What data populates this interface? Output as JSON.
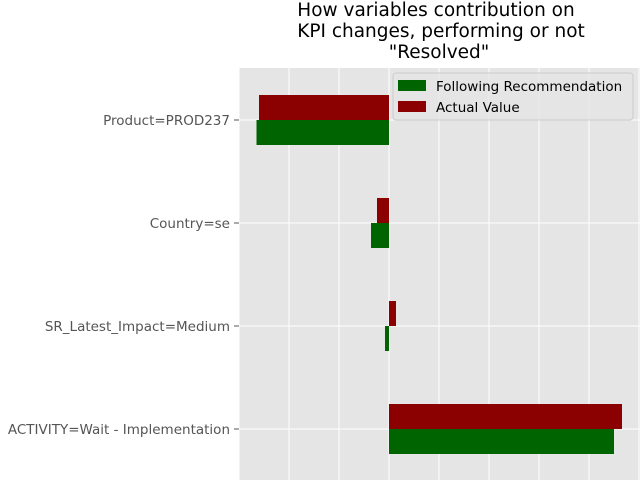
{
  "chart_data": {
    "type": "bar",
    "orientation": "horizontal",
    "title_lines": [
      "How variables contribution on",
      "KPI changes, performing or not",
      "\"Resolved\""
    ],
    "categories": [
      "Product=PROD237",
      "Country=se",
      "SR_Latest_Impact=Medium",
      "ACTIVITY=Wait - Implementation"
    ],
    "series": [
      {
        "name": "Following Recommendation",
        "color": "#006400",
        "values": [
          -0.265,
          -0.036,
          -0.008,
          0.45
        ]
      },
      {
        "name": "Actual Value",
        "color": "#8b0000",
        "values": [
          -0.26,
          -0.024,
          0.014,
          0.466
        ]
      }
    ],
    "xlim": [
      -0.3,
      0.5
    ],
    "grid": true,
    "legend_position": "top-right"
  }
}
